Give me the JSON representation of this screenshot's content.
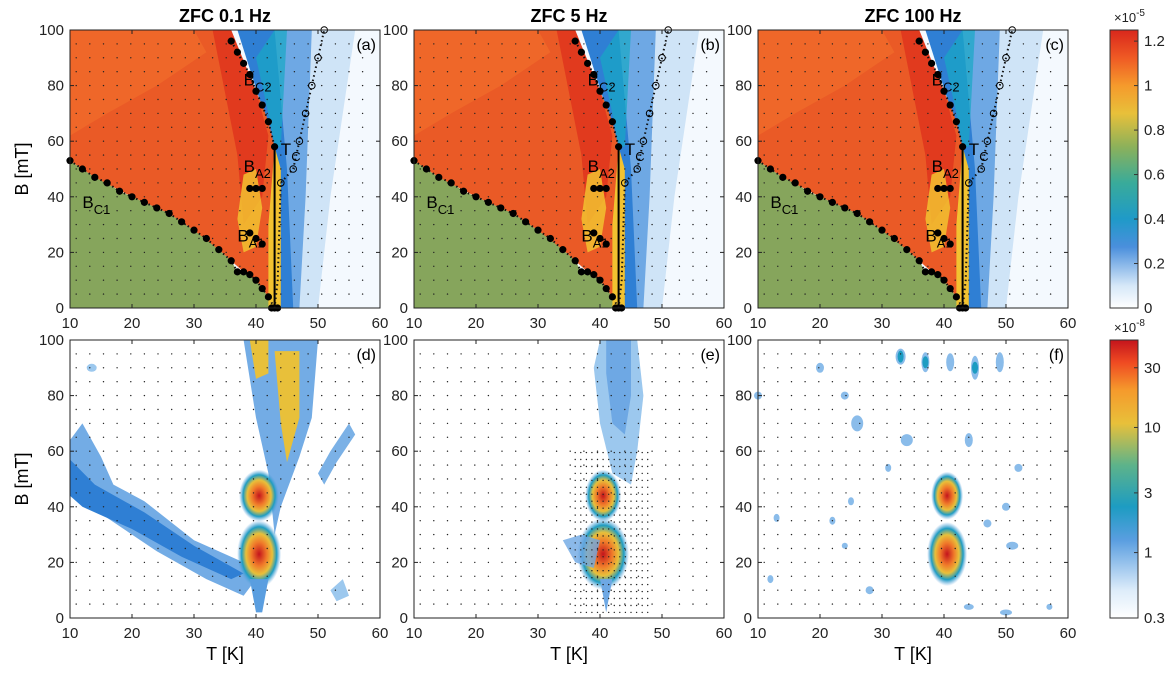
{
  "figure": {
    "column_titles": [
      "ZFC 0.1 Hz",
      "ZFC 5 Hz",
      "ZFC 100 Hz"
    ],
    "x_label": "T [K]",
    "y_label": "B [mT]"
  },
  "chart_data": [
    {
      "type": "heatmap",
      "panel": "(a)",
      "title": "ZFC 0.1 Hz",
      "row": "top",
      "column": 0,
      "xlabel": "",
      "ylabel": "B [mT]",
      "xlim": [
        10,
        60
      ],
      "ylim": [
        0,
        100
      ],
      "xticks": [
        10,
        20,
        30,
        40,
        50,
        60
      ],
      "yticks": [
        0,
        20,
        40,
        60,
        80,
        100
      ],
      "colormap": "jet",
      "colorbar_range": [
        0,
        1.25
      ],
      "annotations": [
        {
          "main": "B",
          "sub": "C2",
          "x": 38,
          "y": 80
        },
        {
          "main": "B",
          "sub": "A2",
          "x": 38,
          "y": 49
        },
        {
          "main": "T",
          "sub": "C",
          "x": 44,
          "y": 55
        },
        {
          "main": "B",
          "sub": "C1",
          "x": 12,
          "y": 36
        },
        {
          "main": "B",
          "sub": "A1",
          "x": 37,
          "y": 24
        }
      ]
    },
    {
      "type": "heatmap",
      "panel": "(b)",
      "title": "ZFC 5 Hz",
      "row": "top",
      "column": 1,
      "xlabel": "",
      "ylabel": "",
      "xlim": [
        10,
        60
      ],
      "ylim": [
        0,
        100
      ],
      "xticks": [
        10,
        20,
        30,
        40,
        50,
        60
      ],
      "yticks": [
        0,
        20,
        40,
        60,
        80,
        100
      ],
      "colormap": "jet",
      "colorbar_range": [
        0,
        1.25
      ],
      "annotations": [
        {
          "main": "B",
          "sub": "C2",
          "x": 38,
          "y": 80
        },
        {
          "main": "B",
          "sub": "A2",
          "x": 38,
          "y": 49
        },
        {
          "main": "T",
          "sub": "C",
          "x": 44,
          "y": 55
        },
        {
          "main": "B",
          "sub": "C1",
          "x": 12,
          "y": 36
        },
        {
          "main": "B",
          "sub": "A1",
          "x": 37,
          "y": 24
        }
      ]
    },
    {
      "type": "heatmap",
      "panel": "(c)",
      "title": "ZFC 100 Hz",
      "row": "top",
      "column": 2,
      "xlabel": "",
      "ylabel": "",
      "xlim": [
        10,
        60
      ],
      "ylim": [
        0,
        100
      ],
      "xticks": [
        10,
        20,
        30,
        40,
        50,
        60
      ],
      "yticks": [
        0,
        20,
        40,
        60,
        80,
        100
      ],
      "colormap": "jet",
      "colorbar_range": [
        0,
        1.25
      ],
      "annotations": [
        {
          "main": "B",
          "sub": "C2",
          "x": 38,
          "y": 80
        },
        {
          "main": "B",
          "sub": "A2",
          "x": 38,
          "y": 49
        },
        {
          "main": "T",
          "sub": "C",
          "x": 44,
          "y": 55
        },
        {
          "main": "B",
          "sub": "C1",
          "x": 12,
          "y": 36
        },
        {
          "main": "B",
          "sub": "A1",
          "x": 37,
          "y": 24
        }
      ]
    },
    {
      "type": "heatmap",
      "panel": "(d)",
      "row": "bottom",
      "column": 0,
      "xlabel": "T [K]",
      "ylabel": "B [mT]",
      "xlim": [
        10,
        60
      ],
      "ylim": [
        0,
        100
      ],
      "xticks": [
        10,
        20,
        30,
        40,
        50,
        60
      ],
      "yticks": [
        0,
        20,
        40,
        60,
        80,
        100
      ],
      "colormap": "jet",
      "colorbar_scale": "log",
      "colorbar_range": [
        0.3,
        50
      ]
    },
    {
      "type": "heatmap",
      "panel": "(e)",
      "row": "bottom",
      "column": 1,
      "xlabel": "T [K]",
      "ylabel": "",
      "xlim": [
        10,
        60
      ],
      "ylim": [
        0,
        100
      ],
      "xticks": [
        10,
        20,
        30,
        40,
        50,
        60
      ],
      "yticks": [
        0,
        20,
        40,
        60,
        80,
        100
      ],
      "colormap": "jet",
      "colorbar_scale": "log",
      "colorbar_range": [
        0.3,
        50
      ]
    },
    {
      "type": "heatmap",
      "panel": "(f)",
      "row": "bottom",
      "column": 2,
      "xlabel": "T [K]",
      "ylabel": "",
      "xlim": [
        10,
        60
      ],
      "ylim": [
        0,
        100
      ],
      "xticks": [
        10,
        20,
        30,
        40,
        50,
        60
      ],
      "yticks": [
        0,
        20,
        40,
        60,
        80,
        100
      ],
      "colormap": "jet",
      "colorbar_scale": "log",
      "colorbar_range": [
        0.3,
        50
      ]
    }
  ],
  "phase_boundaries": {
    "B_C1": {
      "T": [
        10,
        12,
        14,
        16,
        18,
        20,
        22,
        24,
        26,
        28,
        30,
        32,
        34,
        36,
        37,
        38,
        39,
        40,
        41,
        42,
        43
      ],
      "B": [
        53,
        50,
        47,
        45,
        42,
        40,
        38,
        36,
        34,
        31,
        28,
        25,
        21,
        17,
        13,
        13,
        12,
        10,
        7,
        4,
        0
      ]
    },
    "B_C2": {
      "T": [
        36,
        37,
        38,
        39,
        40,
        41,
        42,
        43
      ],
      "B": [
        96,
        92,
        88,
        84,
        78,
        73,
        67,
        58
      ]
    },
    "B_A2": {
      "T": [
        39,
        40,
        41
      ],
      "B": [
        43,
        43,
        43
      ]
    },
    "B_A1": {
      "T": [
        39,
        40,
        41
      ],
      "B": [
        27,
        25,
        23
      ]
    },
    "T_C_vertical": {
      "T": 43,
      "B": [
        0,
        58
      ]
    },
    "T_C_open": {
      "T": [
        43,
        43.5,
        44,
        46,
        47,
        48,
        49,
        50,
        51
      ],
      "B": [
        0,
        10,
        45,
        50,
        60,
        70,
        80,
        90,
        100
      ]
    }
  },
  "colorbars": {
    "top": {
      "exponent_label": "×10",
      "exponent_power": "-5",
      "tick_labels": [
        "0",
        "0.2",
        "0.4",
        "0.6",
        "0.8",
        "1",
        "1.2"
      ],
      "tick_values": [
        0,
        0.2,
        0.4,
        0.6,
        0.8,
        1.0,
        1.2
      ],
      "range": [
        0,
        1.25
      ],
      "scale": "linear"
    },
    "bottom": {
      "exponent_label": "×10",
      "exponent_power": "-8",
      "tick_labels": [
        "0.3",
        "1",
        "3",
        "10",
        "30"
      ],
      "tick_values": [
        0.3,
        1,
        3,
        10,
        30
      ],
      "range": [
        0.3,
        50
      ],
      "scale": "log"
    }
  },
  "colors": {
    "dark_red": "#a8101a",
    "red": "#e8371f",
    "orange": "#f07a2a",
    "yellow": "#f2c230",
    "olive_green": "#86a55c",
    "teal": "#17a8c5",
    "blue": "#2f6fd0",
    "light_blue": "#a8cff0",
    "pale_blue": "#e6f1fc",
    "white": "#ffffff"
  }
}
